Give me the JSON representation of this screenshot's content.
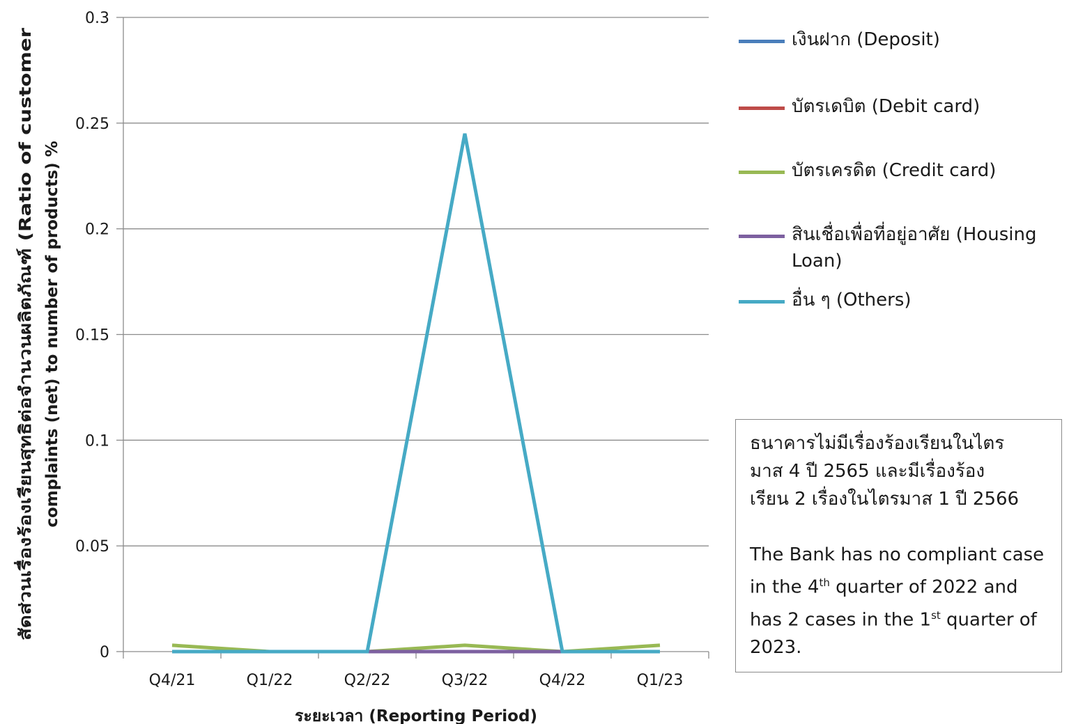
{
  "chart_data": {
    "type": "line",
    "categories": [
      "Q4/21",
      "Q1/22",
      "Q2/22",
      "Q3/22",
      "Q4/22",
      "Q1/23"
    ],
    "yticks": [
      "0",
      "0.05",
      "0.1",
      "0.15",
      "0.2",
      "0.25",
      "0.3"
    ],
    "ylim": [
      0,
      0.3
    ],
    "grid": true,
    "xlabel": "ระยะเวลา (Reporting Period)",
    "ylabel_line1": "สัดส่วนเรื่องร้องเรียนสุทธิต่อจำนวนผลิตภัณฑ์ (Ratio of customer",
    "ylabel_line2": "complaints (net) to number of products) %",
    "legend_position": "right",
    "series": [
      {
        "name": "เงินฝาก (Deposit)",
        "color": "#4a7ebb",
        "values": [
          0,
          0,
          0,
          0,
          0,
          0
        ]
      },
      {
        "name": "บัตรเดบิต (Debit card)",
        "color": "#be4b48",
        "values": [
          0,
          0,
          0,
          0,
          0,
          0
        ]
      },
      {
        "name": "บัตรเครดิต (Credit card)",
        "color": "#98b954",
        "values": [
          0.003,
          0,
          0,
          0.003,
          0,
          0.003
        ]
      },
      {
        "name": "สินเชื่อเพื่อที่อยู่อาศัย (Housing Loan)",
        "color": "#7d60a0",
        "values": [
          0,
          0,
          0,
          0,
          0,
          0
        ]
      },
      {
        "name": "อื่น ๆ (Others)",
        "color": "#46aac5",
        "values": [
          0,
          0,
          0,
          0.245,
          0,
          0
        ]
      }
    ]
  },
  "note": {
    "thai": "ธนาคารไม่มีเรื่องร้องเรียนในไตร\nมาส 4 ปี 2565 และมีเรื่องร้อง\nเรียน 2 เรื่องในไตรมาส 1 ปี 2566",
    "en_part1": "The Bank has  no compliant case in the 4",
    "en_sup1": "th",
    "en_part2": " quarter of 2022 and has 2 cases in the 1",
    "en_sup2": "st",
    "en_part3": " quarter of 2023."
  }
}
